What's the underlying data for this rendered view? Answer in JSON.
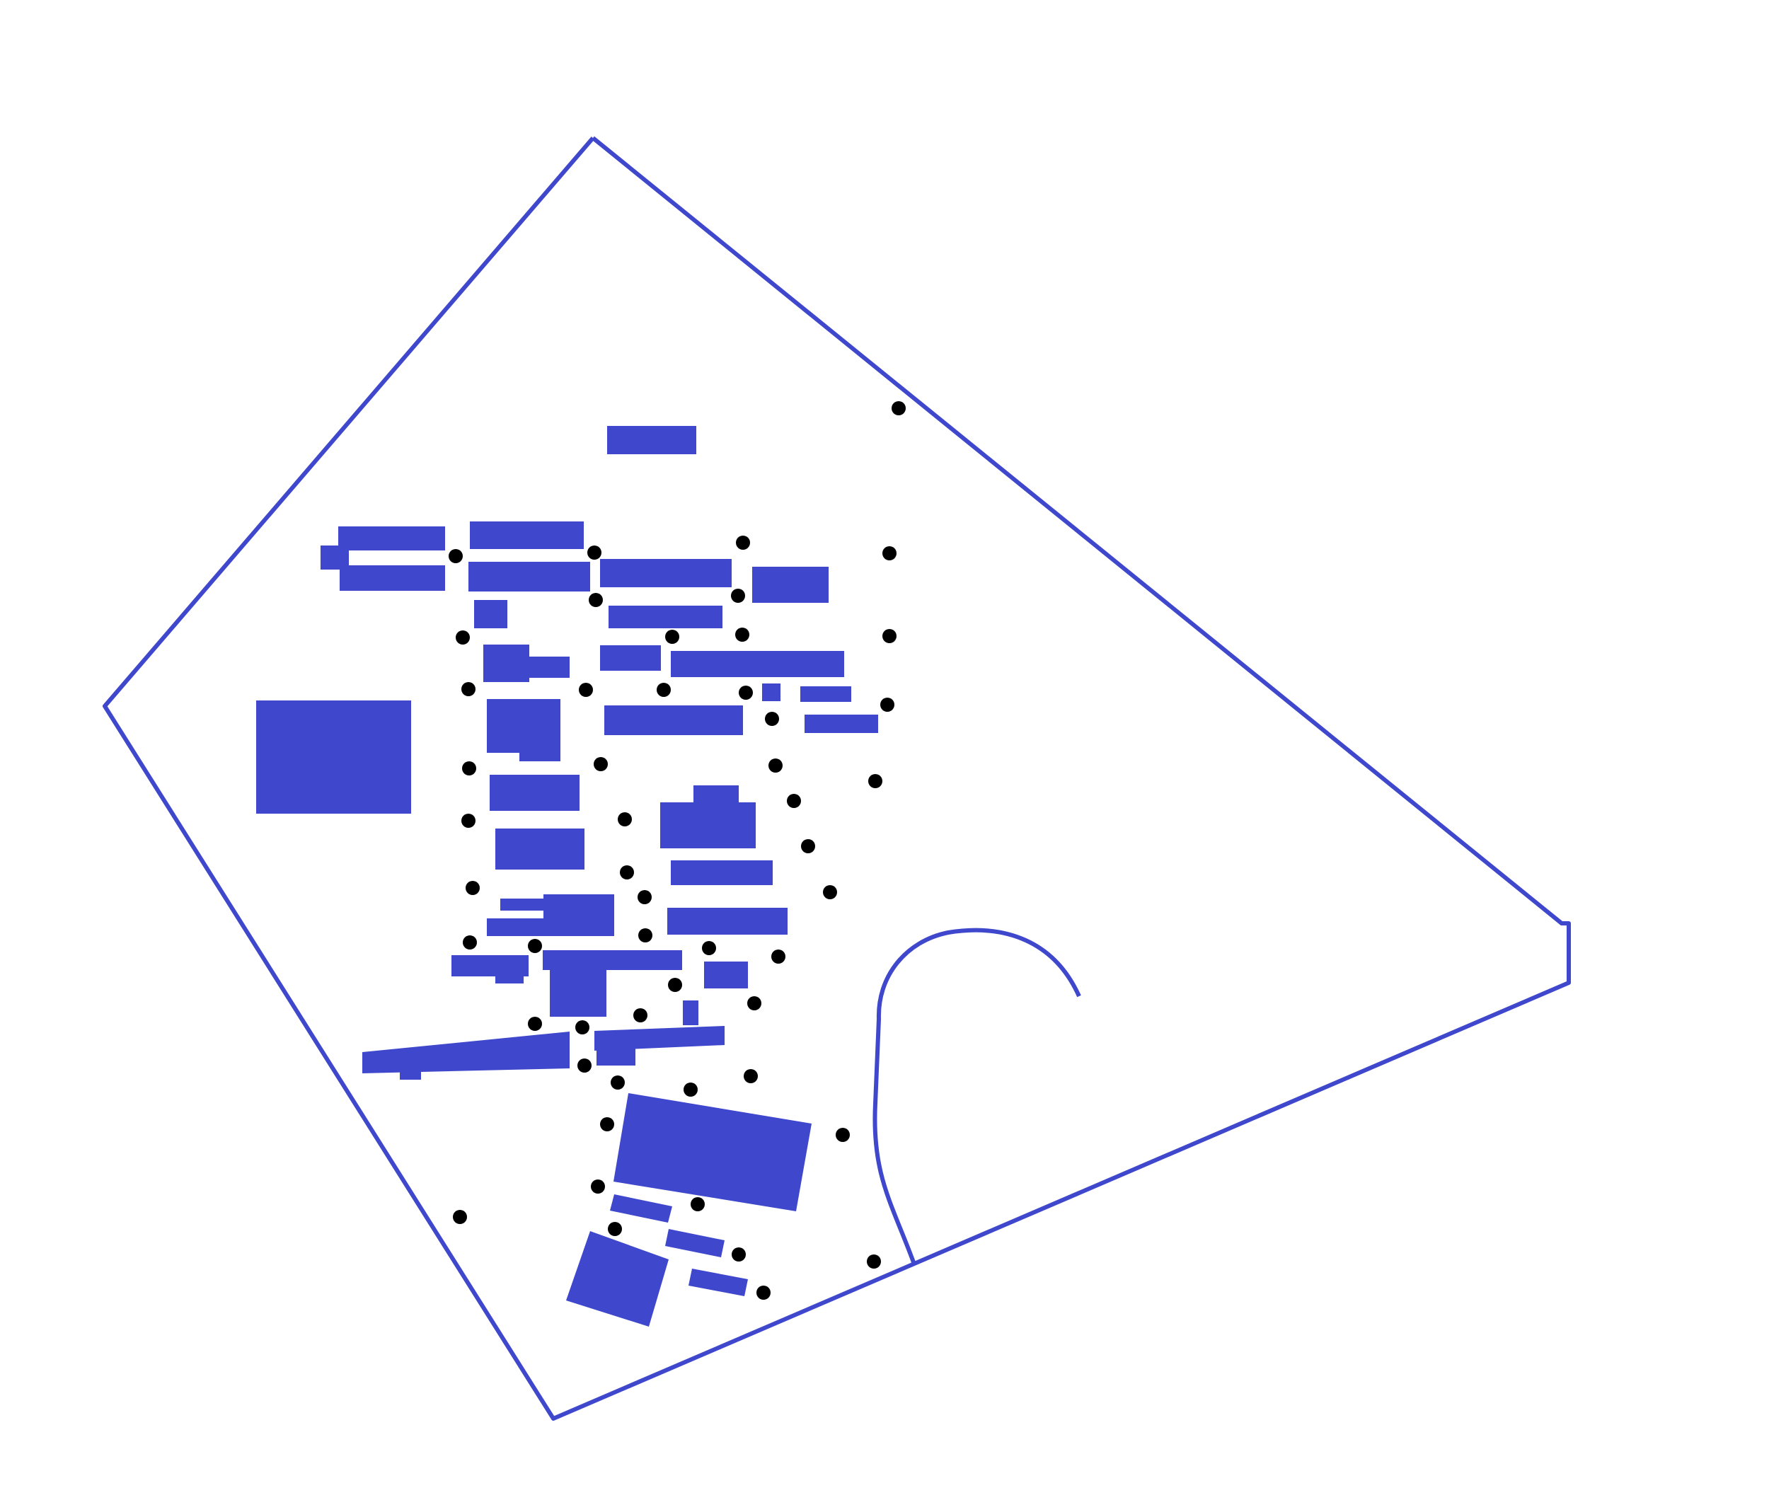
{
  "map": {
    "colors": {
      "background": "#ffffff",
      "building": "#3f48cc",
      "outline": "#3f48cc",
      "marker": "#000000"
    },
    "elements": {
      "boundary": "site-boundary",
      "path": "curved-path",
      "buildings": "building-footprint",
      "markers": "tree-marker"
    }
  }
}
